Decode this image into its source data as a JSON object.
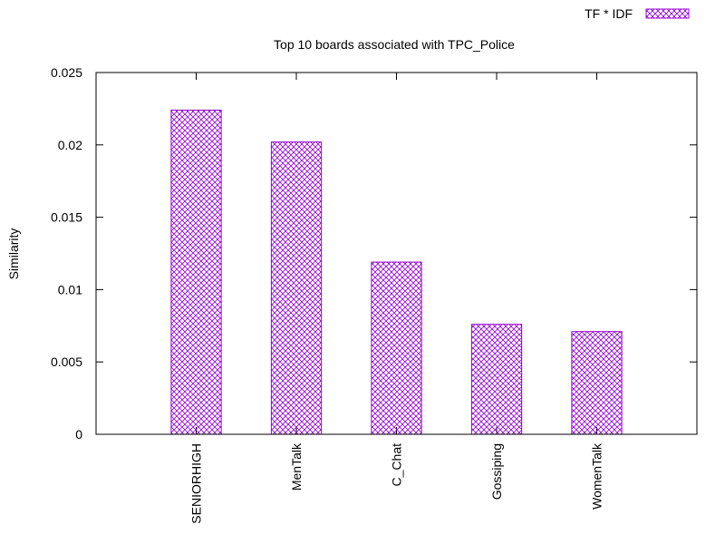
{
  "chart_data": {
    "type": "bar",
    "title": "Top 10 boards associated with TPC_Police",
    "xlabel": "",
    "ylabel": "Similarity",
    "ylim": [
      0,
      0.025
    ],
    "yticks": [
      "0",
      "0.005",
      "0.01",
      "0.015",
      "0.02",
      "0.025"
    ],
    "categories": [
      "SENIORHIGH",
      "MenTalk",
      "C_Chat",
      "Gossiping",
      "WomenTalk"
    ],
    "series": [
      {
        "name": "TF * IDF",
        "values": [
          0.0224,
          0.0202,
          0.0119,
          0.0076,
          0.0071
        ],
        "color": "#9400d3"
      }
    ],
    "grid": false,
    "legend_position": "top-right"
  }
}
